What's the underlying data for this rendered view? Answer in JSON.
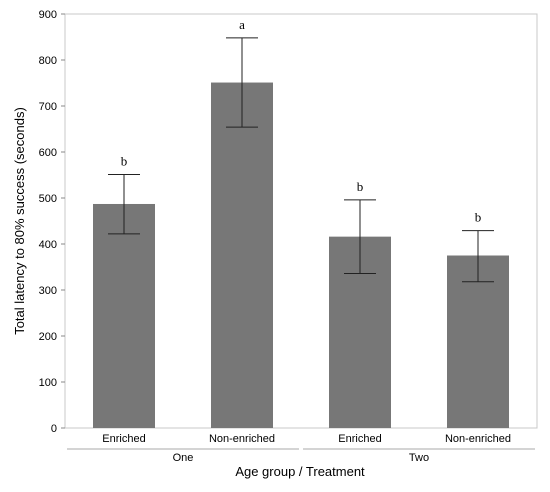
{
  "chart_data": {
    "type": "bar",
    "title": "",
    "xlabel": "Age group / Treatment",
    "ylabel": "Total latency to 80% success (seconds)",
    "ylim": [
      0,
      900
    ],
    "yticks": [
      0,
      100,
      200,
      300,
      400,
      500,
      600,
      700,
      800,
      900
    ],
    "categories": [
      "Enriched",
      "Non-enriched",
      "Enriched",
      "Non-enriched"
    ],
    "groups": [
      {
        "label": "One",
        "categories": [
          0,
          1
        ]
      },
      {
        "label": "Two",
        "categories": [
          2,
          3
        ]
      }
    ],
    "values": [
      487,
      751,
      416,
      375
    ],
    "error_low": [
      422,
      654,
      336,
      318
    ],
    "error_high": [
      551,
      848,
      496,
      429
    ],
    "annotations": [
      "b",
      "a",
      "b",
      "b"
    ],
    "bar_color": "#777777",
    "grid": false,
    "legend": "none"
  }
}
